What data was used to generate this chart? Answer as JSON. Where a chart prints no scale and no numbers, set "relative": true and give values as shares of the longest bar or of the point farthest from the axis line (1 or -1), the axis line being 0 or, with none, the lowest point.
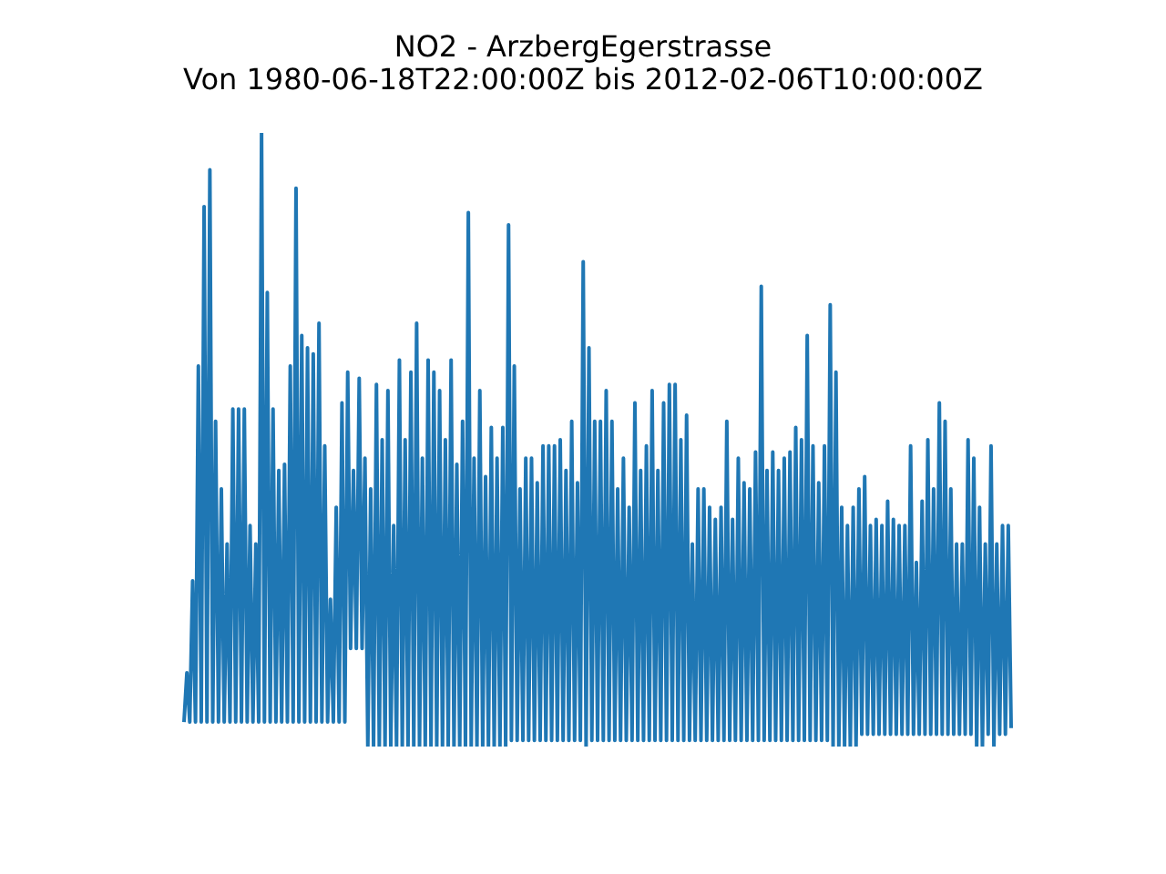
{
  "chart_data": {
    "type": "line",
    "title": "NO2 - ArzbergEgerstrasse",
    "subtitle": "Von 1980-06-18T22:00:00Z bis 2012-02-06T10:00:00Z",
    "relative": true,
    "categories": [
      null,
      null,
      null,
      null,
      null,
      null,
      null,
      null,
      null,
      null,
      null,
      null,
      null,
      null,
      null,
      null,
      null,
      null,
      null,
      null,
      null,
      null,
      null,
      null,
      null,
      null,
      null,
      null,
      null,
      null,
      null,
      null,
      null,
      null,
      null,
      null,
      null,
      null,
      null,
      null,
      null,
      null,
      null,
      null,
      null,
      null,
      null,
      null,
      null,
      null,
      null,
      null,
      null,
      null,
      null,
      null,
      null,
      null,
      null,
      null,
      null,
      null,
      null,
      null,
      null,
      null,
      null,
      null,
      null,
      null,
      null,
      null,
      null,
      null,
      null,
      null,
      null,
      null,
      null,
      null,
      null,
      null,
      null,
      null,
      null,
      null,
      null,
      null,
      null,
      null,
      null,
      null,
      null,
      null,
      null,
      null,
      null,
      null,
      null,
      null,
      null,
      null,
      null,
      null,
      null,
      null,
      null,
      null,
      null,
      null,
      null,
      null,
      null,
      null,
      null,
      null,
      null,
      null,
      null,
      null,
      null,
      null,
      null,
      null,
      null,
      null,
      null,
      null,
      null,
      null,
      null,
      null,
      null,
      null,
      null,
      null,
      null,
      null,
      null,
      null,
      null,
      null,
      null,
      null,
      null,
      null,
      null,
      null,
      null,
      null,
      null,
      null,
      null,
      null,
      null,
      null,
      null,
      null,
      null,
      null,
      null,
      null,
      null,
      null,
      null,
      null,
      null,
      null,
      null,
      null,
      null,
      null,
      null,
      null,
      null,
      null,
      null,
      null,
      null,
      null,
      null,
      null,
      null,
      null,
      null,
      null,
      null,
      null,
      null,
      null,
      null,
      null,
      null,
      null,
      null,
      null,
      null,
      null,
      null,
      null,
      null,
      null,
      null,
      null,
      null,
      null,
      null,
      null,
      null,
      null,
      null,
      null,
      null,
      null,
      null,
      null,
      null,
      null,
      null,
      null,
      null,
      null,
      null,
      null,
      null,
      null,
      null,
      null,
      null,
      null,
      null,
      null,
      null,
      null,
      null,
      null,
      null,
      null,
      null,
      null,
      null,
      null,
      null,
      null,
      null,
      null,
      null,
      null,
      null,
      null,
      null,
      null,
      null,
      null,
      null,
      null,
      null,
      null,
      null,
      null,
      null,
      null,
      null,
      null,
      null,
      null,
      null,
      null,
      null,
      null,
      null,
      null,
      null,
      null,
      null,
      null,
      null,
      null,
      null,
      null,
      null,
      null,
      null,
      null,
      null,
      null,
      null,
      null,
      null
    ],
    "series": [
      {
        "color": "#1f77b4",
        "values": [
          0.04,
          0.12,
          0.04,
          0.27,
          0.04,
          0.62,
          0.04,
          0.88,
          0.04,
          0.94,
          0.04,
          0.53,
          0.04,
          0.42,
          0.04,
          0.33,
          0.04,
          0.55,
          0.04,
          0.55,
          0.04,
          0.55,
          0.04,
          0.36,
          0.04,
          0.33,
          0.04,
          1.0,
          0.04,
          0.74,
          0.04,
          0.55,
          0.04,
          0.45,
          0.04,
          0.46,
          0.04,
          0.62,
          0.04,
          0.91,
          0.04,
          0.67,
          0.04,
          0.65,
          0.04,
          0.64,
          0.04,
          0.69,
          0.04,
          0.49,
          0.04,
          0.24,
          0.04,
          0.39,
          0.04,
          0.56,
          0.04,
          0.61,
          0.16,
          0.45,
          0.16,
          0.6,
          0.16,
          0.47,
          0.0,
          0.42,
          0.0,
          0.59,
          0.0,
          0.5,
          0.0,
          0.58,
          0.0,
          0.36,
          0.0,
          0.63,
          0.0,
          0.5,
          0.0,
          0.61,
          0.0,
          0.69,
          0.0,
          0.47,
          0.0,
          0.63,
          0.0,
          0.61,
          0.0,
          0.58,
          0.0,
          0.5,
          0.0,
          0.63,
          0.0,
          0.46,
          0.0,
          0.53,
          0.0,
          0.87,
          0.0,
          0.47,
          0.0,
          0.58,
          0.0,
          0.44,
          0.0,
          0.52,
          0.0,
          0.47,
          0.0,
          0.52,
          0.0,
          0.85,
          0.01,
          0.62,
          0.01,
          0.42,
          0.01,
          0.47,
          0.01,
          0.47,
          0.01,
          0.43,
          0.01,
          0.49,
          0.01,
          0.49,
          0.01,
          0.49,
          0.01,
          0.5,
          0.01,
          0.45,
          0.01,
          0.53,
          0.01,
          0.43,
          0.01,
          0.79,
          0.0,
          0.65,
          0.01,
          0.53,
          0.01,
          0.53,
          0.01,
          0.58,
          0.01,
          0.53,
          0.01,
          0.42,
          0.01,
          0.47,
          0.01,
          0.39,
          0.01,
          0.56,
          0.01,
          0.45,
          0.01,
          0.49,
          0.01,
          0.58,
          0.01,
          0.45,
          0.01,
          0.56,
          0.01,
          0.59,
          0.01,
          0.59,
          0.01,
          0.5,
          0.01,
          0.54,
          0.01,
          0.33,
          0.01,
          0.42,
          0.01,
          0.42,
          0.01,
          0.39,
          0.01,
          0.37,
          0.01,
          0.39,
          0.01,
          0.53,
          0.01,
          0.37,
          0.01,
          0.47,
          0.01,
          0.43,
          0.01,
          0.42,
          0.01,
          0.48,
          0.01,
          0.75,
          0.01,
          0.45,
          0.01,
          0.48,
          0.01,
          0.45,
          0.01,
          0.47,
          0.01,
          0.48,
          0.01,
          0.52,
          0.01,
          0.5,
          0.01,
          0.67,
          0.01,
          0.49,
          0.01,
          0.43,
          0.01,
          0.49,
          0.01,
          0.72,
          0.0,
          0.61,
          0.0,
          0.39,
          0.0,
          0.36,
          0.0,
          0.39,
          0.0,
          0.42,
          0.02,
          0.44,
          0.02,
          0.36,
          0.02,
          0.37,
          0.02,
          0.36,
          0.02,
          0.4,
          0.02,
          0.37,
          0.02,
          0.36,
          0.02,
          0.36,
          0.02,
          0.49,
          0.02,
          0.3,
          0.02,
          0.4,
          0.02,
          0.5,
          0.02,
          0.42,
          0.02,
          0.56,
          0.02,
          0.53,
          0.02,
          0.42,
          0.02,
          0.33,
          0.02,
          0.33,
          0.02,
          0.5,
          0.02,
          0.47,
          0.0,
          0.39,
          0.0,
          0.33,
          0.02,
          0.49,
          0.0,
          0.33,
          0.02,
          0.36,
          0.02,
          0.36,
          0.03
        ]
      }
    ]
  }
}
